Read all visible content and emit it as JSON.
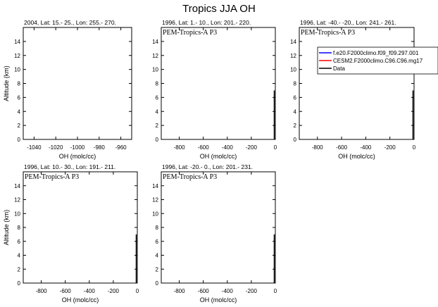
{
  "figure_title": "Tropics JJA OH",
  "colors": {
    "series_model_1": "#0000ff",
    "series_model_2": "#ff0000",
    "series_data": "#000000"
  },
  "chart_data": [
    {
      "type": "line",
      "title": "2004, Lat: 15.- 25., Lon: 255.- 270.",
      "annotation": "",
      "xlabel": "OH (molc/cc)",
      "ylabel": "Altitude (km)",
      "xlim": [
        -1050,
        -950
      ],
      "ylim": [
        0,
        16
      ],
      "xticks": [
        -1040,
        -1020,
        -1000,
        -980,
        -960
      ],
      "yticks": [
        0,
        2,
        4,
        6,
        8,
        10,
        12,
        14
      ],
      "series": []
    },
    {
      "type": "line",
      "title": "1996, Lat: 1.- 10., Lon: 201.- 220.",
      "annotation": "PEM-Tropics-A P3",
      "xlabel": "OH (molc/cc)",
      "ylabel": "",
      "xlim": [
        -950,
        0
      ],
      "ylim": [
        0,
        16
      ],
      "xticks": [
        -800,
        -600,
        -400,
        -200,
        0
      ],
      "yticks": [
        0,
        2,
        4,
        6,
        8,
        10,
        12,
        14
      ],
      "series": [
        {
          "name": "Data",
          "color": "#000000",
          "x": [
            0,
            0
          ],
          "y": [
            0,
            7
          ]
        }
      ]
    },
    {
      "type": "line",
      "title": "1996, Lat: -40.- -20., Lon: 241.- 261.",
      "annotation": "PEM-Tropics-A P3",
      "xlabel": "OH (molc/cc)",
      "ylabel": "",
      "xlim": [
        -950,
        0
      ],
      "ylim": [
        0,
        16
      ],
      "xticks": [
        -800,
        -600,
        -400,
        -200,
        0
      ],
      "yticks": [
        0,
        2,
        4,
        6,
        8,
        10,
        12,
        14
      ],
      "legend": {
        "placement": "top-right",
        "entries": [
          {
            "label": "f.e20.F2000climo.f09_f09.297.001",
            "color": "#0000ff"
          },
          {
            "label": "CESM2.F2000climo.C96.C96.mg17",
            "color": "#ff0000"
          },
          {
            "label": "Data",
            "color": "#000000"
          }
        ]
      },
      "series": [
        {
          "name": "Data",
          "color": "#000000",
          "x": [
            0,
            0
          ],
          "y": [
            0,
            7
          ]
        }
      ]
    },
    {
      "type": "line",
      "title": "1996, Lat: 10.- 30., Lon: 191.- 211.",
      "annotation": "PEM-Tropics-A P3",
      "xlabel": "OH (molc/cc)",
      "ylabel": "Altitude (km)",
      "xlim": [
        -950,
        0
      ],
      "ylim": [
        0,
        16
      ],
      "xticks": [
        -800,
        -600,
        -400,
        -200,
        0
      ],
      "yticks": [
        0,
        2,
        4,
        6,
        8,
        10,
        12,
        14
      ],
      "series": [
        {
          "name": "Data",
          "color": "#000000",
          "x": [
            0,
            0
          ],
          "y": [
            0,
            7
          ]
        }
      ]
    },
    {
      "type": "line",
      "title": "1996, Lat: -20.- 0., Lon: 201.- 231.",
      "annotation": "PEM-Tropics-A P3",
      "xlabel": "OH (molc/cc)",
      "ylabel": "",
      "xlim": [
        -950,
        0
      ],
      "ylim": [
        0,
        16
      ],
      "xticks": [
        -800,
        -600,
        -400,
        -200,
        0
      ],
      "yticks": [
        0,
        2,
        4,
        6,
        8,
        10,
        12,
        14
      ],
      "series": [
        {
          "name": "Data",
          "color": "#000000",
          "x": [
            0,
            0
          ],
          "y": [
            0,
            7
          ]
        }
      ]
    }
  ]
}
